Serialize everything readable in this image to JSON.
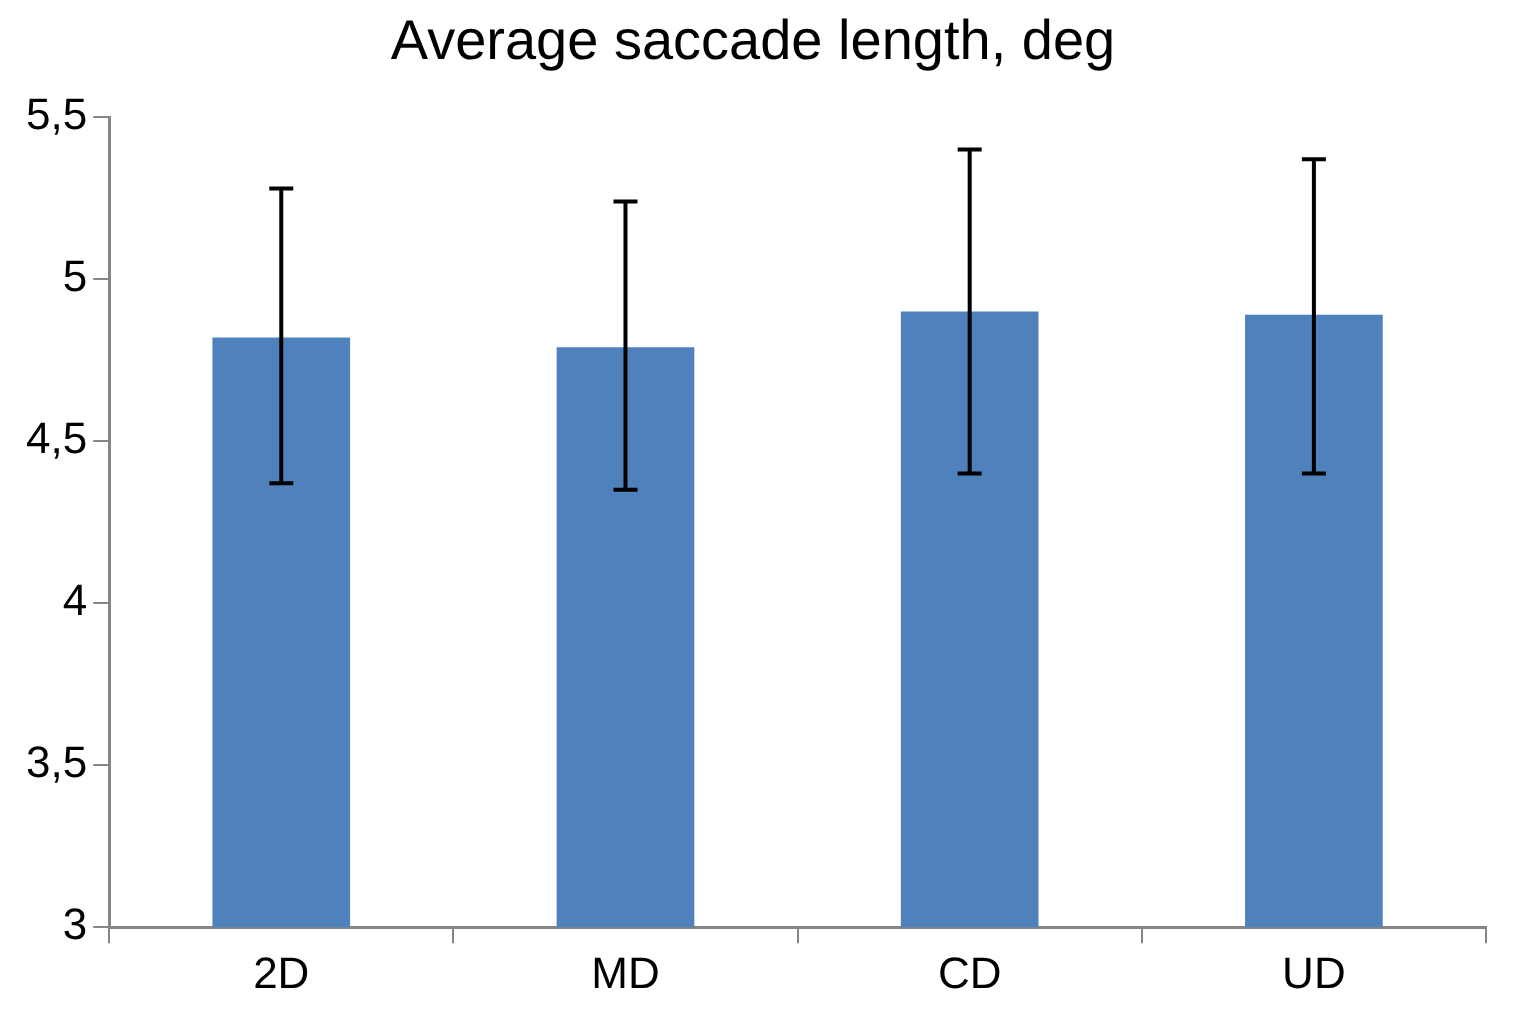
{
  "chart_data": {
    "type": "bar",
    "title": "Average saccade length, deg",
    "categories": [
      "2D",
      "MD",
      "CD",
      "UD"
    ],
    "values": [
      4.82,
      4.79,
      4.9,
      4.89
    ],
    "errors": [
      [
        4.37,
        5.28
      ],
      [
        4.35,
        5.24
      ],
      [
        4.4,
        5.4
      ],
      [
        4.4,
        5.37
      ]
    ],
    "color": "#4f81bd",
    "ylim": [
      3,
      5.5
    ],
    "yticks": [
      3,
      {
        "value": 3.5,
        "label": "3,5"
      },
      4,
      {
        "value": 4.5,
        "label": "4,5"
      },
      5,
      {
        "value": 5.5,
        "label": "5,5"
      }
    ],
    "grid": false,
    "legend": false
  }
}
